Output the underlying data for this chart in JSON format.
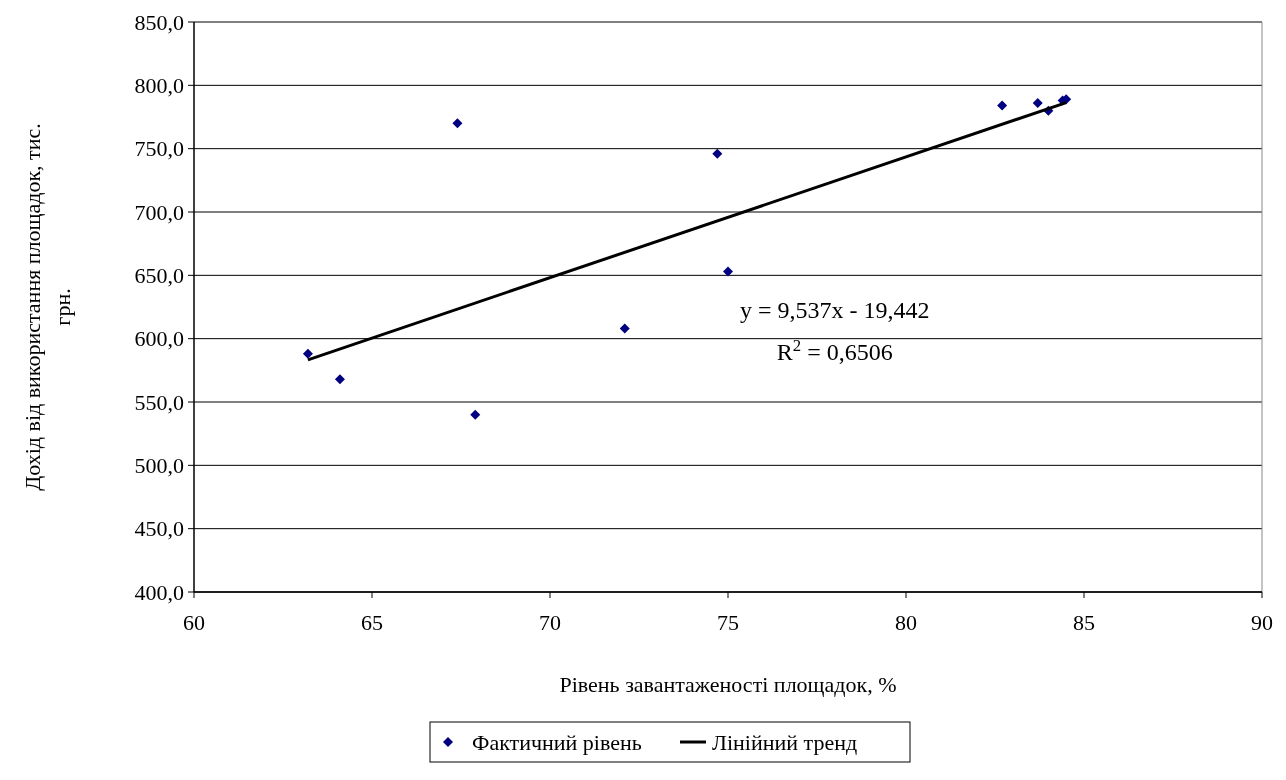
{
  "chart_data": {
    "type": "scatter",
    "xlabel": "Рівень завантаженості площадок, %",
    "ylabel": "Дохід від використання площадок, тис. грн.",
    "xlim": [
      60,
      90
    ],
    "xticks": [
      60,
      65,
      70,
      75,
      80,
      85,
      90
    ],
    "ylim": [
      400,
      850
    ],
    "yticks": [
      {
        "value": 400,
        "label": "400,0"
      },
      {
        "value": 450,
        "label": "450,0"
      },
      {
        "value": 500,
        "label": "500,0"
      },
      {
        "value": 550,
        "label": "550,0"
      },
      {
        "value": 600,
        "label": "600,0"
      },
      {
        "value": 650,
        "label": "650,0"
      },
      {
        "value": 700,
        "label": "700,0"
      },
      {
        "value": 750,
        "label": "750,0"
      },
      {
        "value": 800,
        "label": "800,0"
      },
      {
        "value": 850,
        "label": "850,0"
      }
    ],
    "grid": "y",
    "legend": "bottom",
    "marker": "diamond",
    "annotations": [
      "y = 9,537x - 19,442",
      "R$^{2}$ = 0,6506"
    ],
    "series": [
      {
        "name": "Фактичний рівень",
        "color": "#000080",
        "x": [
          63.2,
          64.1,
          67.4,
          67.9,
          72.1,
          74.7,
          75.0,
          82.7,
          83.7,
          84.0,
          84.4,
          84.5
        ],
        "values": [
          588,
          568,
          770,
          540,
          608,
          746,
          653,
          784,
          786,
          780,
          788,
          789
        ]
      },
      {
        "name": "Лінійний тренд",
        "type": "line",
        "color": "#000000",
        "marker": "none",
        "line_style": "solid",
        "x": [
          63.2,
          84.5
        ],
        "values": [
          583.3,
          786.4
        ]
      }
    ]
  }
}
